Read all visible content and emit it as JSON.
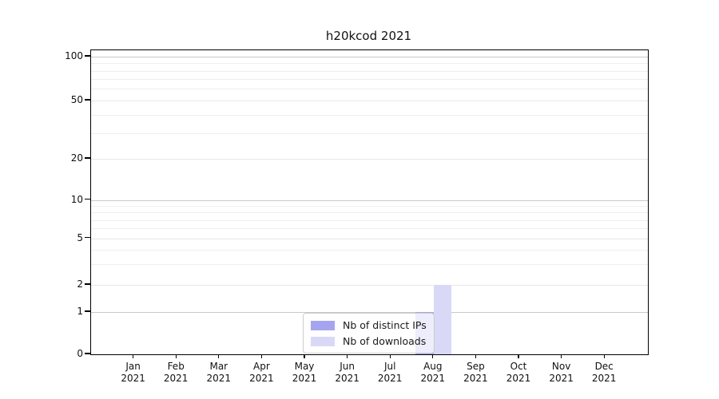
{
  "chart": {
    "title": "h20kcod 2021",
    "legend": {
      "items": [
        {
          "label": "Nb of distinct IPs",
          "color": "#a5a5ef"
        },
        {
          "label": "Nb of downloads",
          "color": "#d9d9f7"
        }
      ]
    }
  },
  "chart_data": {
    "type": "bar",
    "title": "h20kcod 2021",
    "categories": [
      "Jan 2021",
      "Feb 2021",
      "Mar 2021",
      "Apr 2021",
      "May 2021",
      "Jun 2021",
      "Jul 2021",
      "Aug 2021",
      "Sep 2021",
      "Oct 2021",
      "Nov 2021",
      "Dec 2021"
    ],
    "series": [
      {
        "name": "Nb of distinct IPs",
        "color": "#a5a5ef",
        "values": [
          0,
          0,
          0,
          0,
          0,
          0,
          0,
          1,
          0,
          0,
          0,
          0
        ]
      },
      {
        "name": "Nb of downloads",
        "color": "#d9d9f7",
        "values": [
          0,
          0,
          0,
          0,
          0,
          0,
          0,
          2,
          0,
          0,
          0,
          0
        ]
      }
    ],
    "yscale": "symlog",
    "ylim": [
      0,
      100
    ],
    "yticks": [
      0,
      1,
      2,
      5,
      10,
      20,
      50,
      100
    ],
    "yminorticks": [
      3,
      4,
      6,
      7,
      8,
      9,
      30,
      40,
      60,
      70,
      80,
      90
    ],
    "xlabel": "",
    "ylabel": "",
    "grid": true,
    "legend_position": "lower-center-inside"
  }
}
